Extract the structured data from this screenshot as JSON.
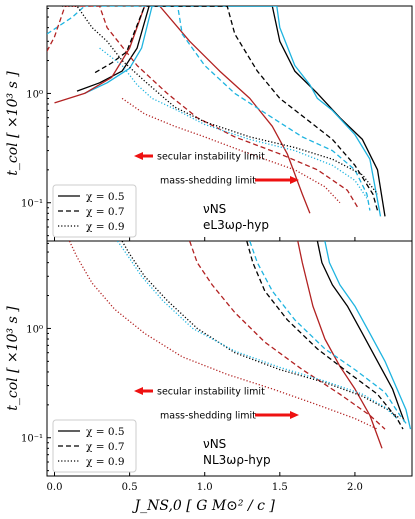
{
  "chart_data": {
    "type": "line",
    "x_label": "J_NS,0 [ G M⊙² / c ]",
    "y_label": "t_col [ ×10³ s ]",
    "x_ticks": [
      "0.0",
      "0.5",
      "1.0",
      "1.5",
      "2.0"
    ],
    "y_ticks": [
      "10⁻¹",
      "10⁰"
    ],
    "xlim": [
      -0.05,
      2.38
    ],
    "ylim_log10": [
      -1.35,
      0.8
    ],
    "y_scale": "log",
    "legend_position": "lower-left",
    "legend": [
      {
        "label": "χ = 0.5",
        "style": "solid"
      },
      {
        "label": "χ = 0.7",
        "style": "dashed"
      },
      {
        "label": "χ = 0.9",
        "style": "dotted"
      }
    ],
    "colors": {
      "black": "#000000",
      "cyan": "#1fb4e0",
      "red": "#b22222",
      "arrow": "#ee1111"
    },
    "panels": [
      {
        "eos_line1": "νNS",
        "eos_line2": "eL3ωρ-hyp",
        "annotation_left": "secular instability limit",
        "annotation_right": "mass-shedding limit",
        "series": [
          {
            "color": "black",
            "style": "solid",
            "points": [
              [
                0.15,
                1.05
              ],
              [
                0.3,
                1.25
              ],
              [
                0.45,
                1.6
              ],
              [
                0.55,
                2.6
              ],
              [
                0.63,
                6.3
              ],
              [
                0.8,
                6.3
              ],
              [
                1.45,
                6.3
              ],
              [
                1.5,
                3.0
              ],
              [
                1.6,
                1.6
              ],
              [
                1.75,
                1.0
              ],
              [
                1.9,
                0.6
              ],
              [
                2.05,
                0.38
              ],
              [
                2.15,
                0.2
              ],
              [
                2.2,
                0.075
              ]
            ]
          },
          {
            "color": "cyan",
            "style": "solid",
            "points": [
              [
                0.2,
                1.0
              ],
              [
                0.35,
                1.25
              ],
              [
                0.5,
                1.7
              ],
              [
                0.58,
                2.6
              ],
              [
                0.65,
                6.3
              ],
              [
                0.8,
                6.3
              ],
              [
                1.48,
                6.3
              ],
              [
                1.5,
                4.0
              ],
              [
                1.6,
                1.8
              ],
              [
                1.7,
                1.2
              ],
              [
                1.75,
                0.9
              ],
              [
                1.85,
                0.7
              ],
              [
                2.0,
                0.42
              ],
              [
                2.1,
                0.25
              ],
              [
                2.17,
                0.075
              ]
            ]
          },
          {
            "color": "red",
            "style": "solid",
            "points": [
              [
                0.0,
                0.82
              ],
              [
                0.2,
                1.0
              ],
              [
                0.38,
                1.4
              ],
              [
                0.5,
                2.6
              ],
              [
                0.6,
                6.3
              ],
              [
                0.62,
                6.3
              ],
              [
                0.7,
                6.3
              ],
              [
                0.9,
                3.0
              ],
              [
                1.1,
                1.6
              ],
              [
                1.3,
                0.9
              ],
              [
                1.45,
                0.5
              ],
              [
                1.55,
                0.28
              ],
              [
                1.65,
                0.12
              ],
              [
                1.7,
                0.08
              ]
            ]
          },
          {
            "color": "black",
            "style": "dashed",
            "points": [
              [
                0.27,
                1.55
              ],
              [
                0.38,
                1.9
              ],
              [
                0.48,
                2.4
              ],
              [
                0.6,
                6.3
              ],
              [
                0.85,
                6.3
              ],
              [
                1.15,
                6.3
              ],
              [
                1.2,
                3.5
              ],
              [
                1.35,
                1.6
              ],
              [
                1.5,
                0.9
              ],
              [
                1.7,
                0.55
              ],
              [
                1.85,
                0.38
              ],
              [
                2.0,
                0.22
              ],
              [
                2.12,
                0.12
              ],
              [
                2.15,
                0.085
              ]
            ]
          },
          {
            "color": "cyan",
            "style": "dashed",
            "points": [
              [
                -0.05,
                3.5
              ],
              [
                0.12,
                5.0
              ],
              [
                0.2,
                6.3
              ],
              [
                0.4,
                6.3
              ],
              [
                0.82,
                6.3
              ],
              [
                0.85,
                3.5
              ],
              [
                1.0,
                1.8
              ],
              [
                1.2,
                1.0
              ],
              [
                1.45,
                0.6
              ],
              [
                1.65,
                0.4
              ],
              [
                1.85,
                0.3
              ],
              [
                2.0,
                0.2
              ],
              [
                2.08,
                0.12
              ],
              [
                2.1,
                0.085
              ]
            ]
          },
          {
            "color": "red",
            "style": "dashed",
            "points": [
              [
                -0.1,
                1.8
              ],
              [
                0.0,
                3.3
              ],
              [
                0.07,
                6.3
              ],
              [
                0.15,
                6.3
              ],
              [
                0.3,
                6.3
              ],
              [
                0.35,
                4.0
              ],
              [
                0.55,
                1.8
              ],
              [
                0.75,
                1.0
              ],
              [
                0.95,
                0.6
              ],
              [
                1.2,
                0.4
              ],
              [
                1.5,
                0.28
              ],
              [
                1.75,
                0.2
              ],
              [
                1.95,
                0.13
              ],
              [
                2.02,
                0.09
              ]
            ]
          },
          {
            "color": "black",
            "style": "dotted",
            "points": [
              [
                0.05,
                6.3
              ],
              [
                0.15,
                6.3
              ],
              [
                0.25,
                4.0
              ],
              [
                0.35,
                3.0
              ],
              [
                0.45,
                2.0
              ],
              [
                0.6,
                1.3
              ],
              [
                0.8,
                0.75
              ],
              [
                1.0,
                0.55
              ],
              [
                1.3,
                0.4
              ],
              [
                1.6,
                0.32
              ],
              [
                1.85,
                0.25
              ],
              [
                2.05,
                0.18
              ],
              [
                2.15,
                0.12
              ]
            ]
          },
          {
            "color": "cyan",
            "style": "dotted",
            "points": [
              [
                0.3,
                2.6
              ],
              [
                0.45,
                1.8
              ],
              [
                0.55,
                1.2
              ],
              [
                0.65,
                0.9
              ],
              [
                0.8,
                0.72
              ],
              [
                1.0,
                0.52
              ],
              [
                1.3,
                0.38
              ],
              [
                1.6,
                0.3
              ],
              [
                1.85,
                0.22
              ],
              [
                2.0,
                0.16
              ],
              [
                2.08,
                0.11
              ]
            ]
          },
          {
            "color": "red",
            "style": "dotted",
            "points": [
              [
                0.45,
                0.9
              ],
              [
                0.6,
                0.65
              ],
              [
                0.8,
                0.5
              ],
              [
                1.0,
                0.4
              ],
              [
                1.3,
                0.28
              ],
              [
                1.6,
                0.2
              ],
              [
                1.8,
                0.14
              ],
              [
                1.9,
                0.1
              ]
            ]
          }
        ]
      },
      {
        "eos_line1": "νNS",
        "eos_line2": "NL3ωρ-hyp",
        "annotation_left": "secular instability limit",
        "annotation_right": "mass-shedding limit",
        "series": [
          {
            "color": "black",
            "style": "solid",
            "points": [
              [
                1.75,
                6.3
              ],
              [
                1.78,
                4.0
              ],
              [
                1.85,
                2.5
              ],
              [
                1.95,
                1.6
              ],
              [
                2.05,
                0.9
              ],
              [
                2.15,
                0.5
              ],
              [
                2.25,
                0.28
              ],
              [
                2.3,
                0.18
              ],
              [
                2.33,
                0.14
              ]
            ]
          },
          {
            "color": "cyan",
            "style": "solid",
            "points": [
              [
                1.8,
                6.3
              ],
              [
                1.83,
                4.0
              ],
              [
                1.9,
                2.5
              ],
              [
                2.0,
                1.6
              ],
              [
                2.1,
                0.9
              ],
              [
                2.2,
                0.5
              ],
              [
                2.28,
                0.28
              ],
              [
                2.34,
                0.18
              ],
              [
                2.37,
                0.12
              ]
            ]
          },
          {
            "color": "red",
            "style": "solid",
            "points": [
              [
                1.62,
                6.3
              ],
              [
                1.65,
                4.0
              ],
              [
                1.72,
                1.6
              ],
              [
                1.8,
                0.8
              ],
              [
                1.9,
                0.45
              ],
              [
                2.0,
                0.28
              ],
              [
                2.1,
                0.16
              ],
              [
                2.18,
                0.08
              ]
            ]
          },
          {
            "color": "black",
            "style": "dashed",
            "points": [
              [
                1.28,
                6.3
              ],
              [
                1.32,
                4.0
              ],
              [
                1.4,
                2.2
              ],
              [
                1.55,
                1.2
              ],
              [
                1.75,
                0.65
              ],
              [
                1.95,
                0.4
              ],
              [
                2.15,
                0.25
              ],
              [
                2.28,
                0.15
              ],
              [
                2.32,
                0.12
              ]
            ]
          },
          {
            "color": "cyan",
            "style": "dashed",
            "points": [
              [
                1.3,
                6.3
              ],
              [
                1.35,
                4.0
              ],
              [
                1.45,
                2.2
              ],
              [
                1.6,
                1.2
              ],
              [
                1.8,
                0.65
              ],
              [
                2.0,
                0.42
              ],
              [
                2.2,
                0.26
              ],
              [
                2.3,
                0.16
              ],
              [
                2.35,
                0.13
              ]
            ]
          },
          {
            "color": "red",
            "style": "dashed",
            "points": [
              [
                0.9,
                6.3
              ],
              [
                0.95,
                4.0
              ],
              [
                1.05,
                2.5
              ],
              [
                1.2,
                1.4
              ],
              [
                1.4,
                0.75
              ],
              [
                1.65,
                0.42
              ],
              [
                1.9,
                0.25
              ],
              [
                2.1,
                0.16
              ],
              [
                2.2,
                0.12
              ]
            ]
          },
          {
            "color": "black",
            "style": "dotted",
            "points": [
              [
                0.45,
                6.3
              ],
              [
                0.5,
                4.8
              ],
              [
                0.6,
                3.0
              ],
              [
                0.75,
                1.8
              ],
              [
                0.95,
                1.0
              ],
              [
                1.2,
                0.6
              ],
              [
                1.5,
                0.42
              ],
              [
                1.8,
                0.32
              ],
              [
                2.05,
                0.24
              ],
              [
                2.22,
                0.18
              ],
              [
                2.3,
                0.15
              ]
            ]
          },
          {
            "color": "cyan",
            "style": "dotted",
            "points": [
              [
                0.42,
                6.3
              ],
              [
                0.48,
                4.8
              ],
              [
                0.58,
                3.0
              ],
              [
                0.72,
                1.8
              ],
              [
                0.92,
                1.0
              ],
              [
                1.2,
                0.62
              ],
              [
                1.5,
                0.44
              ],
              [
                1.8,
                0.33
              ],
              [
                2.05,
                0.25
              ],
              [
                2.2,
                0.19
              ],
              [
                2.28,
                0.15
              ]
            ]
          },
          {
            "color": "red",
            "style": "dotted",
            "points": [
              [
                0.1,
                6.3
              ],
              [
                0.15,
                4.5
              ],
              [
                0.25,
                2.6
              ],
              [
                0.4,
                1.5
              ],
              [
                0.6,
                0.9
              ],
              [
                0.85,
                0.55
              ],
              [
                1.15,
                0.38
              ],
              [
                1.45,
                0.28
              ],
              [
                1.75,
                0.2
              ],
              [
                2.0,
                0.15
              ],
              [
                2.15,
                0.12
              ]
            ]
          }
        ]
      }
    ]
  }
}
